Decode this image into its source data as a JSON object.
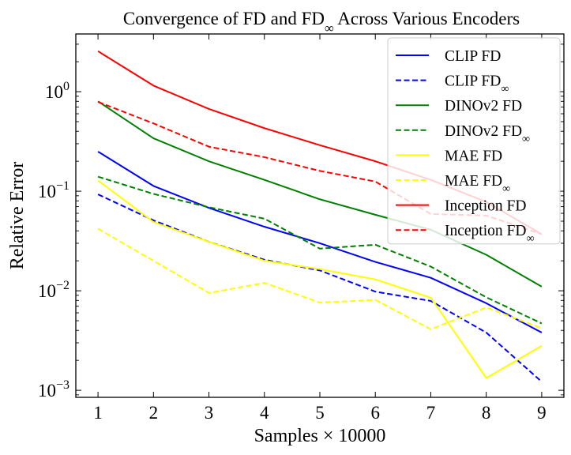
{
  "chart_data": {
    "type": "line",
    "title": "Convergence of FD and FD∞ Across Various Encoders",
    "xlabel": "Samples × 10000",
    "ylabel": "Relative Error",
    "yscale": "log",
    "x": [
      1,
      2,
      3,
      4,
      5,
      6,
      7,
      8,
      9
    ],
    "xlim": [
      0.6,
      9.4
    ],
    "ylim": [
      0.00085,
      3.8
    ],
    "x_ticks": [
      "1",
      "2",
      "3",
      "4",
      "5",
      "6",
      "7",
      "8",
      "9"
    ],
    "y_ticks": [
      {
        "value": 0.001,
        "base": "10",
        "exp": "−3"
      },
      {
        "value": 0.01,
        "base": "10",
        "exp": "−2"
      },
      {
        "value": 0.1,
        "base": "10",
        "exp": "−1"
      },
      {
        "value": 1,
        "base": "10",
        "exp": "0"
      }
    ],
    "legend_position": "upper-right",
    "series": [
      {
        "name": "CLIP FD",
        "color": "#0000ff",
        "dashed": false,
        "values": [
          0.25,
          0.113,
          0.068,
          0.044,
          0.03,
          0.0195,
          0.0135,
          0.0075,
          0.0038
        ]
      },
      {
        "name": "CLIP FD∞",
        "color": "#0000ff",
        "dashed": true,
        "values": [
          0.093,
          0.051,
          0.031,
          0.0205,
          0.016,
          0.0098,
          0.0079,
          0.0038,
          0.00122
        ]
      },
      {
        "name": "DINOv2 FD",
        "color": "#008000",
        "dashed": false,
        "values": [
          0.8,
          0.34,
          0.2,
          0.13,
          0.083,
          0.058,
          0.041,
          0.023,
          0.011
        ]
      },
      {
        "name": "DINOv2 FD∞",
        "color": "#008000",
        "dashed": true,
        "values": [
          0.14,
          0.094,
          0.069,
          0.053,
          0.0265,
          0.029,
          0.0175,
          0.0086,
          0.0047
        ]
      },
      {
        "name": "MAE FD",
        "color": "#ffff00",
        "dashed": false,
        "values": [
          0.128,
          0.049,
          0.031,
          0.02,
          0.0165,
          0.013,
          0.0085,
          0.00133,
          0.0028
        ]
      },
      {
        "name": "MAE FD∞",
        "color": "#ffff00",
        "dashed": true,
        "values": [
          0.042,
          0.02,
          0.0095,
          0.012,
          0.0076,
          0.0081,
          0.0041,
          0.0068,
          0.0042
        ]
      },
      {
        "name": "Inception FD",
        "color": "#ff0000",
        "dashed": false,
        "values": [
          2.55,
          1.15,
          0.67,
          0.43,
          0.29,
          0.2,
          0.13,
          0.078,
          0.037
        ]
      },
      {
        "name": "Inception FD∞",
        "color": "#ff0000",
        "dashed": true,
        "values": [
          0.79,
          0.48,
          0.28,
          0.22,
          0.16,
          0.125,
          0.059,
          0.057,
          0.037
        ]
      }
    ]
  }
}
